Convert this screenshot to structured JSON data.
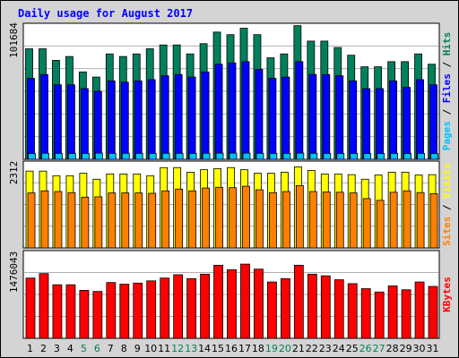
{
  "title": "Daily usage for August 2017",
  "colors": {
    "background": "#d4d4d4",
    "panel": "#ffffff",
    "title": "#0000ff",
    "hits": "#00805c",
    "files": "#0000ff",
    "pages": "#00c0ff",
    "visits": "#ffff00",
    "sites": "#ff8000",
    "kbytes": "#ff0000",
    "weekend_label": "#00805c",
    "weekday_label": "#000000"
  },
  "chart_data": [
    {
      "type": "bar",
      "name": "hits-files-pages",
      "max_label": "101684",
      "ylim": [
        0,
        101684
      ],
      "legend": [
        "Pages",
        "Files",
        "Hits"
      ],
      "legend_sep": "/",
      "categories": [
        "1",
        "2",
        "3",
        "4",
        "5",
        "6",
        "7",
        "8",
        "9",
        "10",
        "11",
        "12",
        "13",
        "14",
        "15",
        "16",
        "17",
        "18",
        "19",
        "20",
        "21",
        "22",
        "23",
        "24",
        "25",
        "26",
        "27",
        "28",
        "29",
        "30",
        "31"
      ],
      "weekend": [
        "5",
        "6",
        "12",
        "13",
        "19",
        "20",
        "26",
        "27"
      ],
      "series": [
        {
          "name": "Hits",
          "values": [
            86000,
            86000,
            77000,
            80000,
            68000,
            64000,
            82000,
            80000,
            82000,
            86000,
            89000,
            89000,
            82000,
            90000,
            99000,
            97000,
            102000,
            97000,
            79000,
            82000,
            104000,
            92000,
            92000,
            87000,
            81000,
            72000,
            72000,
            76000,
            76000,
            82000,
            74000
          ]
        },
        {
          "name": "Files",
          "values": [
            63000,
            66000,
            58000,
            58000,
            55000,
            53000,
            61000,
            60000,
            61000,
            62000,
            65000,
            66000,
            64000,
            68000,
            74000,
            75000,
            76000,
            70000,
            63000,
            64000,
            76000,
            66000,
            66000,
            65000,
            61000,
            55000,
            55000,
            61000,
            56000,
            62000,
            58000
          ]
        },
        {
          "name": "Pages",
          "values": [
            4500,
            4700,
            4600,
            4500,
            4600,
            4800,
            4600,
            4700,
            4600,
            4600,
            4700,
            4700,
            4600,
            4700,
            4800,
            4800,
            4800,
            4700,
            4600,
            4600,
            4800,
            4700,
            4600,
            4600,
            4600,
            4500,
            4500,
            4600,
            4500,
            4600,
            4500
          ]
        }
      ]
    },
    {
      "type": "bar",
      "name": "visits-sites",
      "max_label": "2312",
      "ylim": [
        0,
        2312
      ],
      "legend": [
        "Sites",
        "Visits"
      ],
      "legend_sep": "/",
      "categories": [
        "1",
        "2",
        "3",
        "4",
        "5",
        "6",
        "7",
        "8",
        "9",
        "10",
        "11",
        "12",
        "13",
        "14",
        "15",
        "16",
        "17",
        "18",
        "19",
        "20",
        "21",
        "22",
        "23",
        "24",
        "25",
        "26",
        "27",
        "28",
        "29",
        "30",
        "31"
      ],
      "series": [
        {
          "name": "Visits",
          "values": [
            2180,
            2180,
            2050,
            2050,
            2120,
            1950,
            2100,
            2100,
            2100,
            2050,
            2280,
            2280,
            2150,
            2220,
            2250,
            2280,
            2220,
            2120,
            2120,
            2150,
            2300,
            2200,
            2100,
            2100,
            2080,
            1950,
            2070,
            2150,
            2150,
            2070,
            2080
          ]
        },
        {
          "name": "Sites",
          "values": [
            1560,
            1620,
            1600,
            1570,
            1440,
            1450,
            1560,
            1560,
            1560,
            1550,
            1620,
            1670,
            1620,
            1700,
            1720,
            1710,
            1750,
            1650,
            1570,
            1600,
            1770,
            1600,
            1590,
            1580,
            1560,
            1400,
            1350,
            1580,
            1620,
            1570,
            1540
          ]
        }
      ]
    },
    {
      "type": "bar",
      "name": "kbytes",
      "max_label": "1476043",
      "ylim": [
        0,
        1476043
      ],
      "legend": [
        "KBytes"
      ],
      "categories": [
        "1",
        "2",
        "3",
        "4",
        "5",
        "6",
        "7",
        "8",
        "9",
        "10",
        "11",
        "12",
        "13",
        "14",
        "15",
        "16",
        "17",
        "18",
        "19",
        "20",
        "21",
        "22",
        "23",
        "24",
        "25",
        "26",
        "27",
        "28",
        "29",
        "30",
        "31"
      ],
      "series": [
        {
          "name": "KBytes",
          "values": [
            1080000,
            1160000,
            960000,
            960000,
            860000,
            840000,
            1000000,
            970000,
            990000,
            1030000,
            1080000,
            1140000,
            1070000,
            1150000,
            1310000,
            1230000,
            1330000,
            1240000,
            1010000,
            1070000,
            1310000,
            1150000,
            1120000,
            1050000,
            980000,
            890000,
            830000,
            940000,
            870000,
            1010000,
            930000
          ]
        }
      ]
    }
  ]
}
